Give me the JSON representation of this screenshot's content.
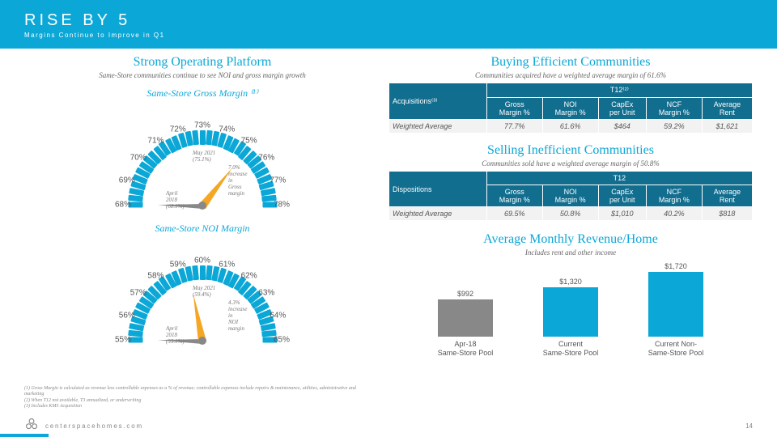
{
  "banner": {
    "title": "RISE BY 5",
    "subtitle": "Margins Continue to Improve in Q1"
  },
  "left": {
    "title": "Strong Operating Platform",
    "subtitle": "Same-Store communities continue to see NOI and gross margin growth",
    "gauge1": {
      "title": "Same-Store Gross Margin ⁽¹⁾",
      "min": 68,
      "max": 78,
      "labels": [
        "68%",
        "69%",
        "70%",
        "71%",
        "72%",
        "73%",
        "74%",
        "75%",
        "76%",
        "77%",
        "78%"
      ],
      "needle1_val": 75.1,
      "needle1_txt": "May 2021\n(75.1%)",
      "needle2_val": 68.1,
      "needle2_txt": "April\n2018\n(68.1%)",
      "delta_txt": "7.0%\nincrease\nin\nGross\nmargin",
      "tick_color": "#0ba7d7",
      "needle1_color": "#f5a623",
      "needle2_color": "#888"
    },
    "gauge2": {
      "title": "Same-Store NOI Margin",
      "min": 55,
      "max": 65,
      "labels": [
        "55%",
        "56%",
        "57%",
        "58%",
        "59%",
        "60%",
        "61%",
        "62%",
        "63%",
        "64%",
        "65%"
      ],
      "needle1_val": 59.4,
      "needle1_txt": "May 2021\n(59.4%)",
      "needle2_val": 55.1,
      "needle2_txt": "April\n2018\n(55.1%)",
      "delta_txt": "4.3%\nincrease\nin\nNOI\nmargin"
    }
  },
  "right": {
    "acq": {
      "title": "Buying Efficient Communities",
      "subtitle": "Communities acquired have a weighted average margin of 61.6%",
      "super_header": "T12⁽²⁾",
      "corner": "Acquisitions⁽³⁾",
      "cols": [
        "Gross\nMargin %",
        "NOI\nMargin %",
        "CapEx\nper Unit",
        "NCF\nMargin %",
        "Average\nRent"
      ],
      "row_lbl": "Weighted Average",
      "row": [
        "77.7%",
        "61.6%",
        "$464",
        "59.2%",
        "$1,621"
      ]
    },
    "disp": {
      "title": "Selling Inefficient Communities",
      "subtitle": "Communities sold have a weighted average margin of 50.8%",
      "super_header": "T12",
      "corner": "Dispositions",
      "cols": [
        "Gross\nMargin %",
        "NOI\nMargin %",
        "CapEx\nper Unit",
        "NCF\nMargin %",
        "Average\nRent"
      ],
      "row_lbl": "Weighted Average",
      "row": [
        "69.5%",
        "50.8%",
        "$1,010",
        "40.2%",
        "$818"
      ]
    },
    "chart": {
      "title": "Average Monthly Revenue/Home",
      "subtitle": "Includes rent and other income",
      "max": 1720,
      "bars": [
        {
          "label": "Apr-18\nSame-Store Pool",
          "value": 992,
          "display": "$992",
          "color": "#888888"
        },
        {
          "label": "Current\nSame-Store Pool",
          "value": 1320,
          "display": "$1,320",
          "color": "#0ba7d7"
        },
        {
          "label": "Current Non-\nSame-Store Pool",
          "value": 1720,
          "display": "$1,720",
          "color": "#0ba7d7"
        }
      ]
    }
  },
  "footnotes": [
    "(1)   Gross Margin is calculated as revenue less controllable expenses as a % of revenue; controllable expenses include repairs & maintenance, utilities, administrative and marketing",
    "(2)   When T12 not available, T3 annualized, or underwriting",
    "(3)   Includes KMS Acquisition"
  ],
  "footer": {
    "url": "centerspacehomes.com",
    "page": "14"
  },
  "colors": {
    "brand": "#0ba7d7",
    "brand_dark": "#116e8f",
    "grey": "#888888",
    "accent": "#f5a623"
  }
}
